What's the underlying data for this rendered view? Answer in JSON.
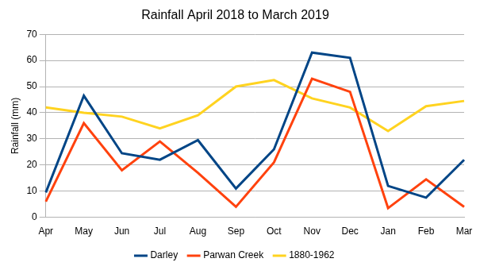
{
  "chart_data": {
    "type": "line",
    "title": "Rainfall April 2018 to March 2019",
    "y_label": "Rainfall (mm)",
    "categories": [
      "Apr",
      "May",
      "Jun",
      "Jul",
      "Aug",
      "Sep",
      "Oct",
      "Nov",
      "Dec",
      "Jan",
      "Feb",
      "Mar"
    ],
    "series": [
      {
        "name": "Darley",
        "color": "#004586",
        "values": [
          9.5,
          46.5,
          24.5,
          22,
          29.5,
          11,
          26,
          63,
          61,
          12,
          7.5,
          22
        ]
      },
      {
        "name": "Parwan Creek",
        "color": "#ff420e",
        "values": [
          6,
          36,
          18,
          29,
          17,
          4,
          21,
          53,
          48,
          3.5,
          14.5,
          4
        ]
      },
      {
        "name": "1880-1962",
        "color": "#ffd320",
        "values": [
          42,
          40,
          38.5,
          34,
          39,
          50,
          52.5,
          45.5,
          42,
          33,
          42.5,
          44.5
        ]
      }
    ],
    "ylim": [
      0,
      70
    ],
    "yticks": [
      0,
      10,
      20,
      30,
      40,
      50,
      60,
      70
    ],
    "grid": "y",
    "legend": "bottom"
  }
}
